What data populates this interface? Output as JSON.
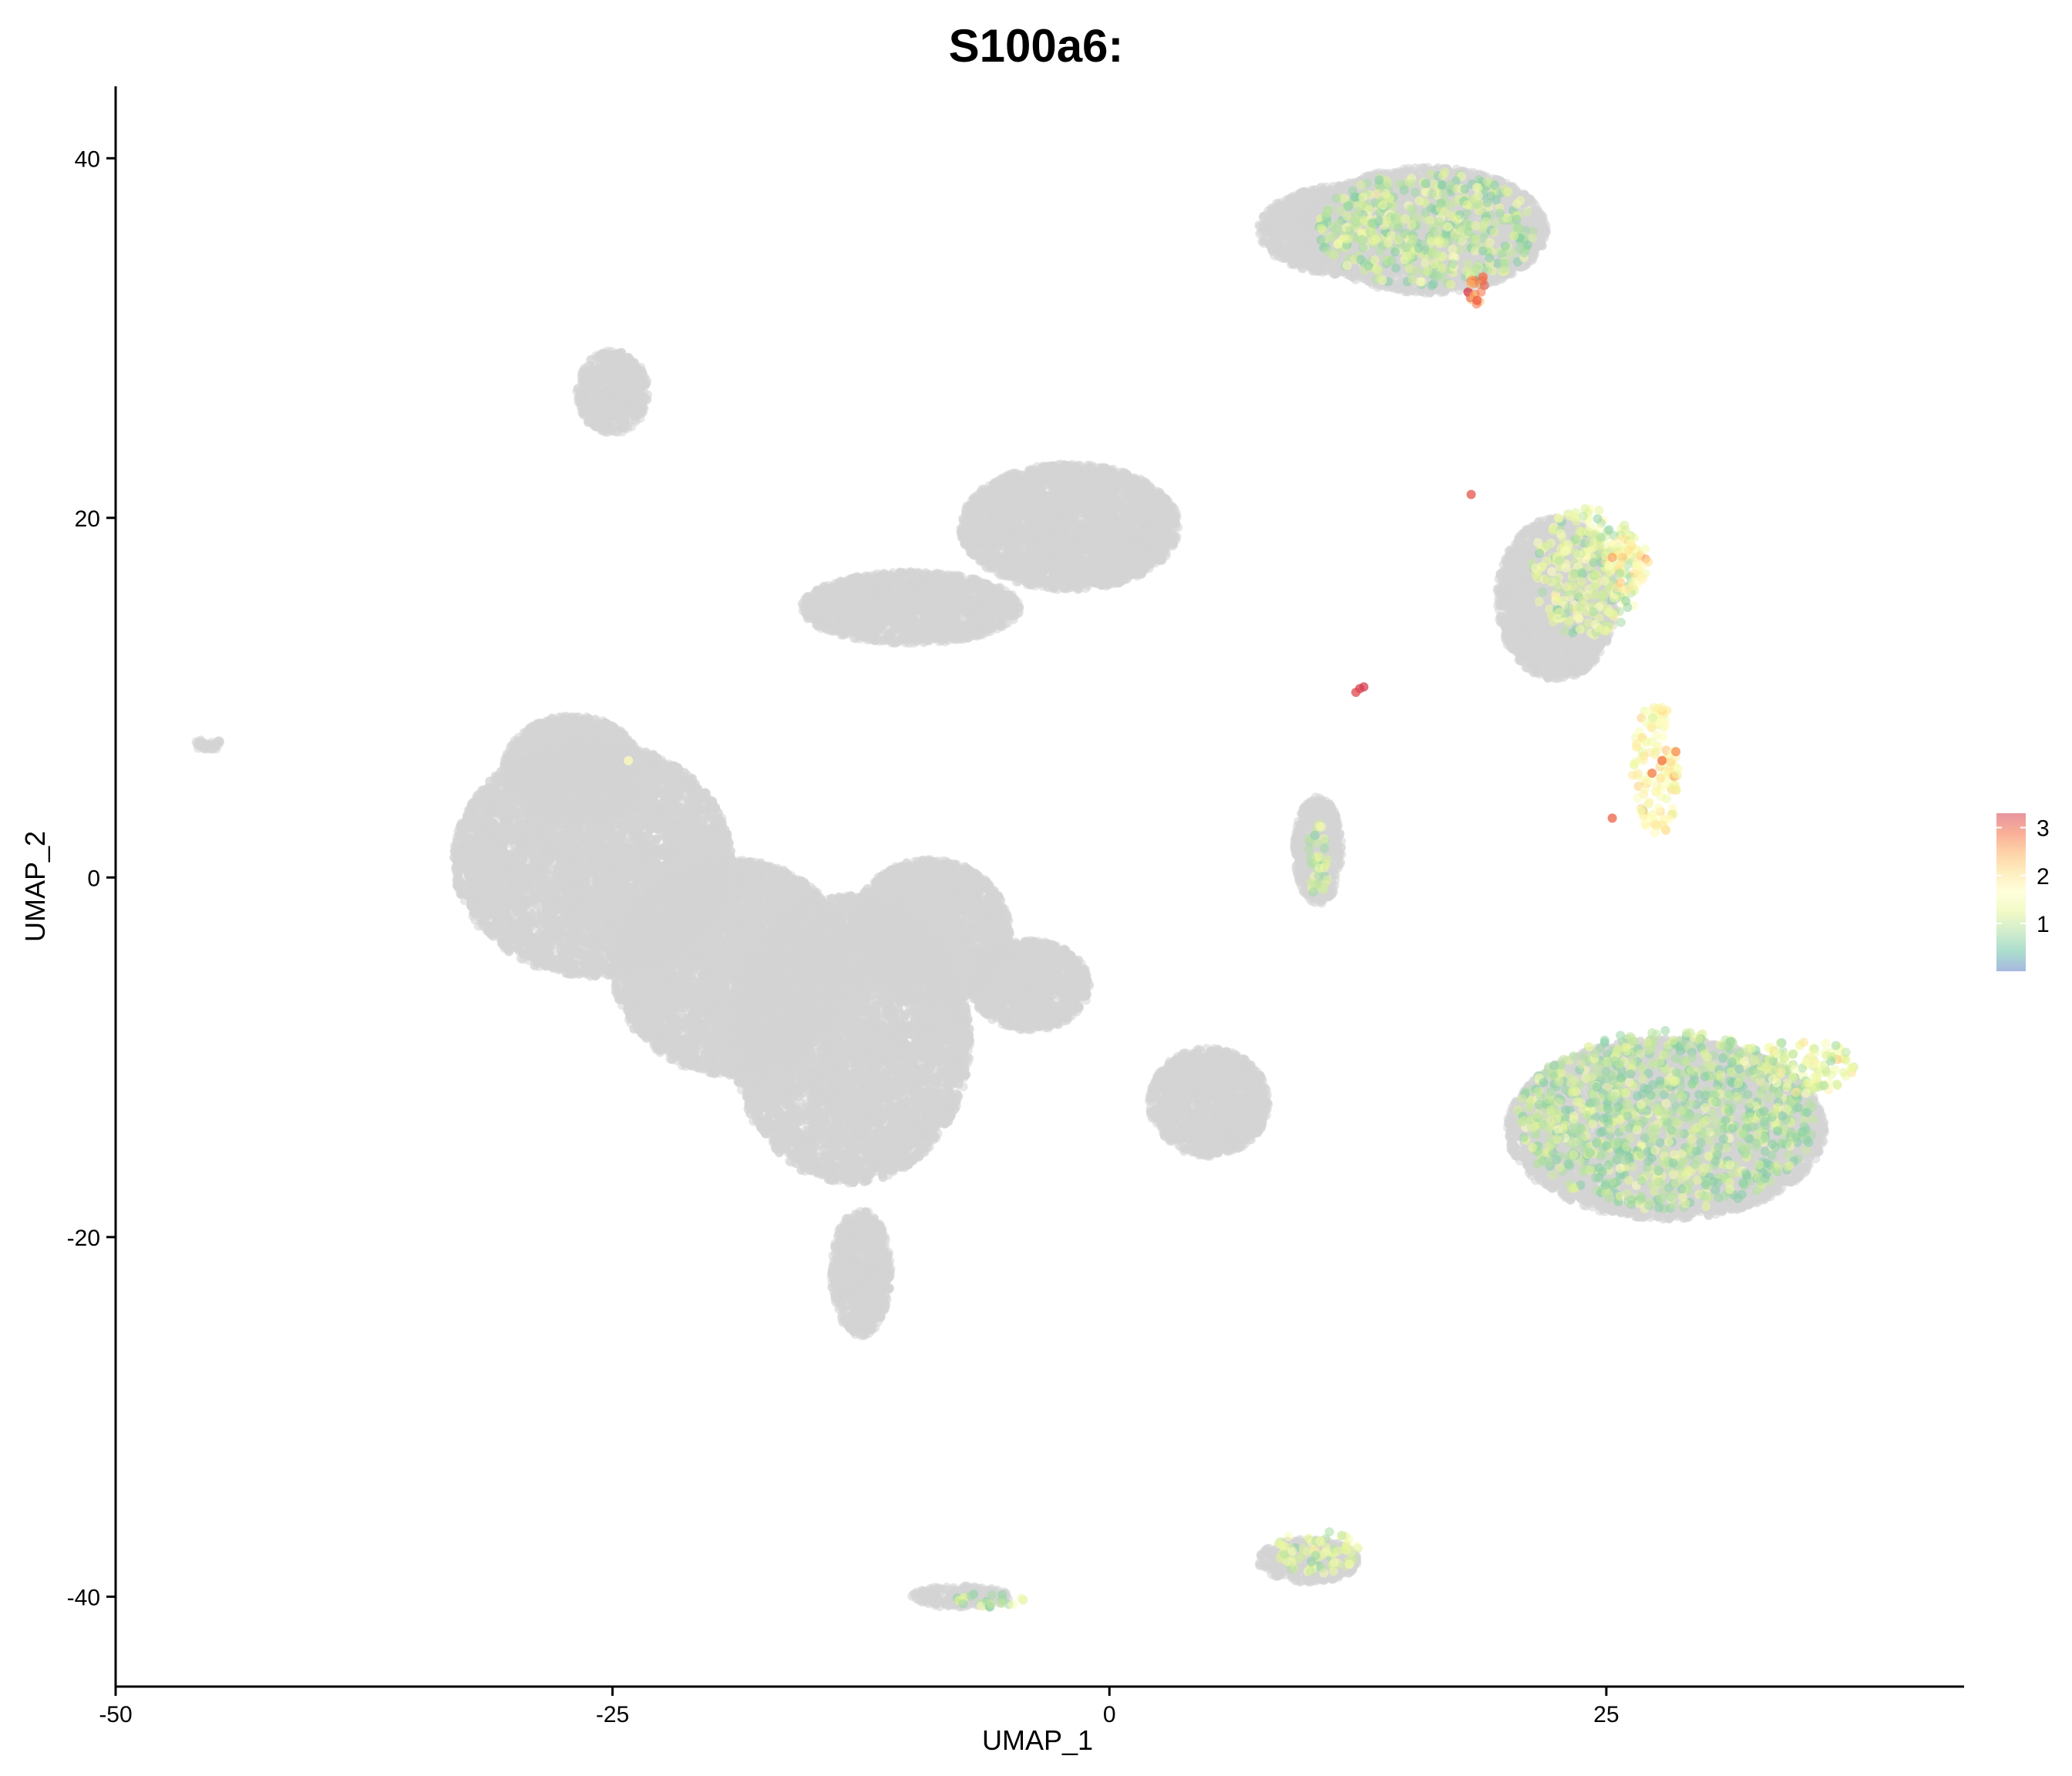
{
  "chart_data": {
    "type": "scatter",
    "title": "S100a6:",
    "xlabel": "UMAP_1",
    "ylabel": "UMAP_2",
    "xlim": [
      -50,
      43
    ],
    "ylim": [
      -45,
      44
    ],
    "xticks": [
      -50,
      -25,
      0,
      25
    ],
    "xtick_labels": [
      "-50",
      "-25",
      "0",
      "25"
    ],
    "yticks": [
      -40,
      -20,
      0,
      20,
      40
    ],
    "ytick_labels": [
      "-40",
      "-20",
      "0",
      "20",
      "40"
    ],
    "grid": false,
    "point_alpha": 0.55,
    "background_color": "#d3d3d3",
    "colorscale": {
      "name": "Spectral (reversed)",
      "min": 0,
      "max": 3.3,
      "stops": [
        "#5e7fc5",
        "#66c2a5",
        "#abdda4",
        "#e6f598",
        "#ffffbf",
        "#fee08b",
        "#fdae61",
        "#f46d43",
        "#d53e4f"
      ],
      "ticks": [
        1,
        2,
        3
      ],
      "tick_labels": [
        "1",
        "2",
        "3"
      ],
      "legend_position": "right"
    },
    "background_clusters": [
      {
        "cx": -25,
        "cy": 27,
        "rx": 1.8,
        "ry": 2.3
      },
      {
        "cx": -45.3,
        "cy": 7.4,
        "rx": 0.8,
        "ry": 0.3
      },
      {
        "cx": -2,
        "cy": 19.5,
        "rx": 5.5,
        "ry": 3.5
      },
      {
        "cx": -10,
        "cy": 15,
        "rx": 5.5,
        "ry": 2.0
      },
      {
        "cx": -26,
        "cy": 1,
        "rx": 7,
        "ry": 6.5
      },
      {
        "cx": -27,
        "cy": 6,
        "rx": 3.5,
        "ry": 3.0
      },
      {
        "cx": -19,
        "cy": -5,
        "rx": 6,
        "ry": 6
      },
      {
        "cx": -13,
        "cy": -9,
        "rx": 6,
        "ry": 8
      },
      {
        "cx": -9,
        "cy": -3,
        "rx": 4,
        "ry": 4
      },
      {
        "cx": -4,
        "cy": -6,
        "rx": 3,
        "ry": 2.5
      },
      {
        "cx": -12.5,
        "cy": -22,
        "rx": 1.5,
        "ry": 3.5
      },
      {
        "cx": 5,
        "cy": -12.5,
        "rx": 3,
        "ry": 3
      },
      {
        "cx": 10.5,
        "cy": 1.5,
        "rx": 1.2,
        "ry": 3
      },
      {
        "cx": 12,
        "cy": 36,
        "rx": 4.5,
        "ry": 2.5
      },
      {
        "cx": 16,
        "cy": 36,
        "rx": 6,
        "ry": 3.5
      },
      {
        "cx": 22.5,
        "cy": 15.5,
        "rx": 3,
        "ry": 4.5
      },
      {
        "cx": 28,
        "cy": -14,
        "rx": 8,
        "ry": 5
      },
      {
        "cx": -7.5,
        "cy": -40,
        "rx": 2.5,
        "ry": 0.6
      },
      {
        "cx": 10,
        "cy": -38,
        "rx": 2.5,
        "ry": 1.2
      }
    ],
    "expressing_clusters": [
      {
        "cx": 16,
        "cy": 36,
        "rx": 5.5,
        "ry": 3.3,
        "mean": 1.0
      },
      {
        "cx": 18.5,
        "cy": 32.6,
        "rx": 0.5,
        "ry": 0.8,
        "mean": 2.8
      },
      {
        "cx": 24,
        "cy": 17,
        "rx": 2.8,
        "ry": 3.6,
        "mean": 1.2
      },
      {
        "cx": 26,
        "cy": 17.5,
        "rx": 1.2,
        "ry": 1.5,
        "mean": 1.8
      },
      {
        "cx": 27.5,
        "cy": 6,
        "rx": 1.2,
        "ry": 3.8,
        "mean": 1.7
      },
      {
        "cx": 28,
        "cy": -13.5,
        "rx": 7.5,
        "ry": 5,
        "mean": 0.9
      },
      {
        "cx": 35,
        "cy": -10.5,
        "rx": 2.5,
        "ry": 1.5,
        "mean": 1.3
      },
      {
        "cx": 10.5,
        "cy": -37.5,
        "rx": 2.2,
        "ry": 1.2,
        "mean": 1.2
      },
      {
        "cx": -6,
        "cy": -40.2,
        "rx": 1.8,
        "ry": 0.4,
        "mean": 0.9
      },
      {
        "cx": 10.5,
        "cy": 1,
        "rx": 0.6,
        "ry": 2,
        "mean": 1.0
      }
    ],
    "highlighted_points": [
      {
        "x": 12.6,
        "y": 10.5,
        "value": 3.3
      },
      {
        "x": 12.4,
        "y": 10.3,
        "value": 3.2
      },
      {
        "x": 12.8,
        "y": 10.6,
        "value": 3.3
      },
      {
        "x": 27.8,
        "y": 6.5,
        "value": 2.9
      },
      {
        "x": 28.5,
        "y": 7.0,
        "value": 2.7
      },
      {
        "x": 27.3,
        "y": 5.8,
        "value": 2.8
      },
      {
        "x": 25.3,
        "y": 3.3,
        "value": 3.0
      },
      {
        "x": 18.5,
        "y": 32.1,
        "value": 3.0
      },
      {
        "x": 18.8,
        "y": 33.4,
        "value": 2.9
      },
      {
        "x": 18.2,
        "y": 21.3,
        "value": 3.1
      },
      {
        "x": 25.3,
        "y": 17.8,
        "value": 2.5
      },
      {
        "x": -24.2,
        "y": 6.5,
        "value": 1.6
      }
    ]
  }
}
